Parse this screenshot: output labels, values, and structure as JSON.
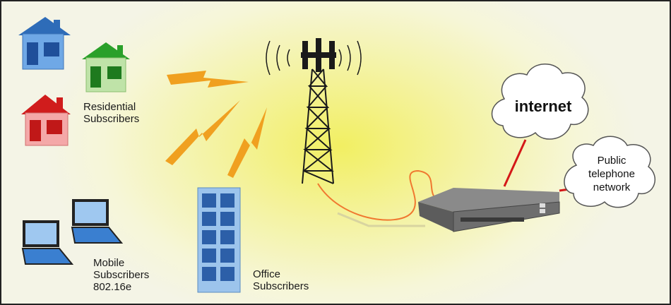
{
  "labels": {
    "residential": "Residential\nSubscribers",
    "mobile": "Mobile\nSubscribers\n802.16e",
    "office": "Office\nSubscribers",
    "internet": "internet",
    "pstn": "Public\ntelephone\nnetwork"
  },
  "colors": {
    "house_blue": "#4a8fd4",
    "house_green": "#2ea82e",
    "house_red": "#d42020",
    "lightning": "#f0a020",
    "link_red": "#d41818",
    "fiber": "#f07830"
  }
}
